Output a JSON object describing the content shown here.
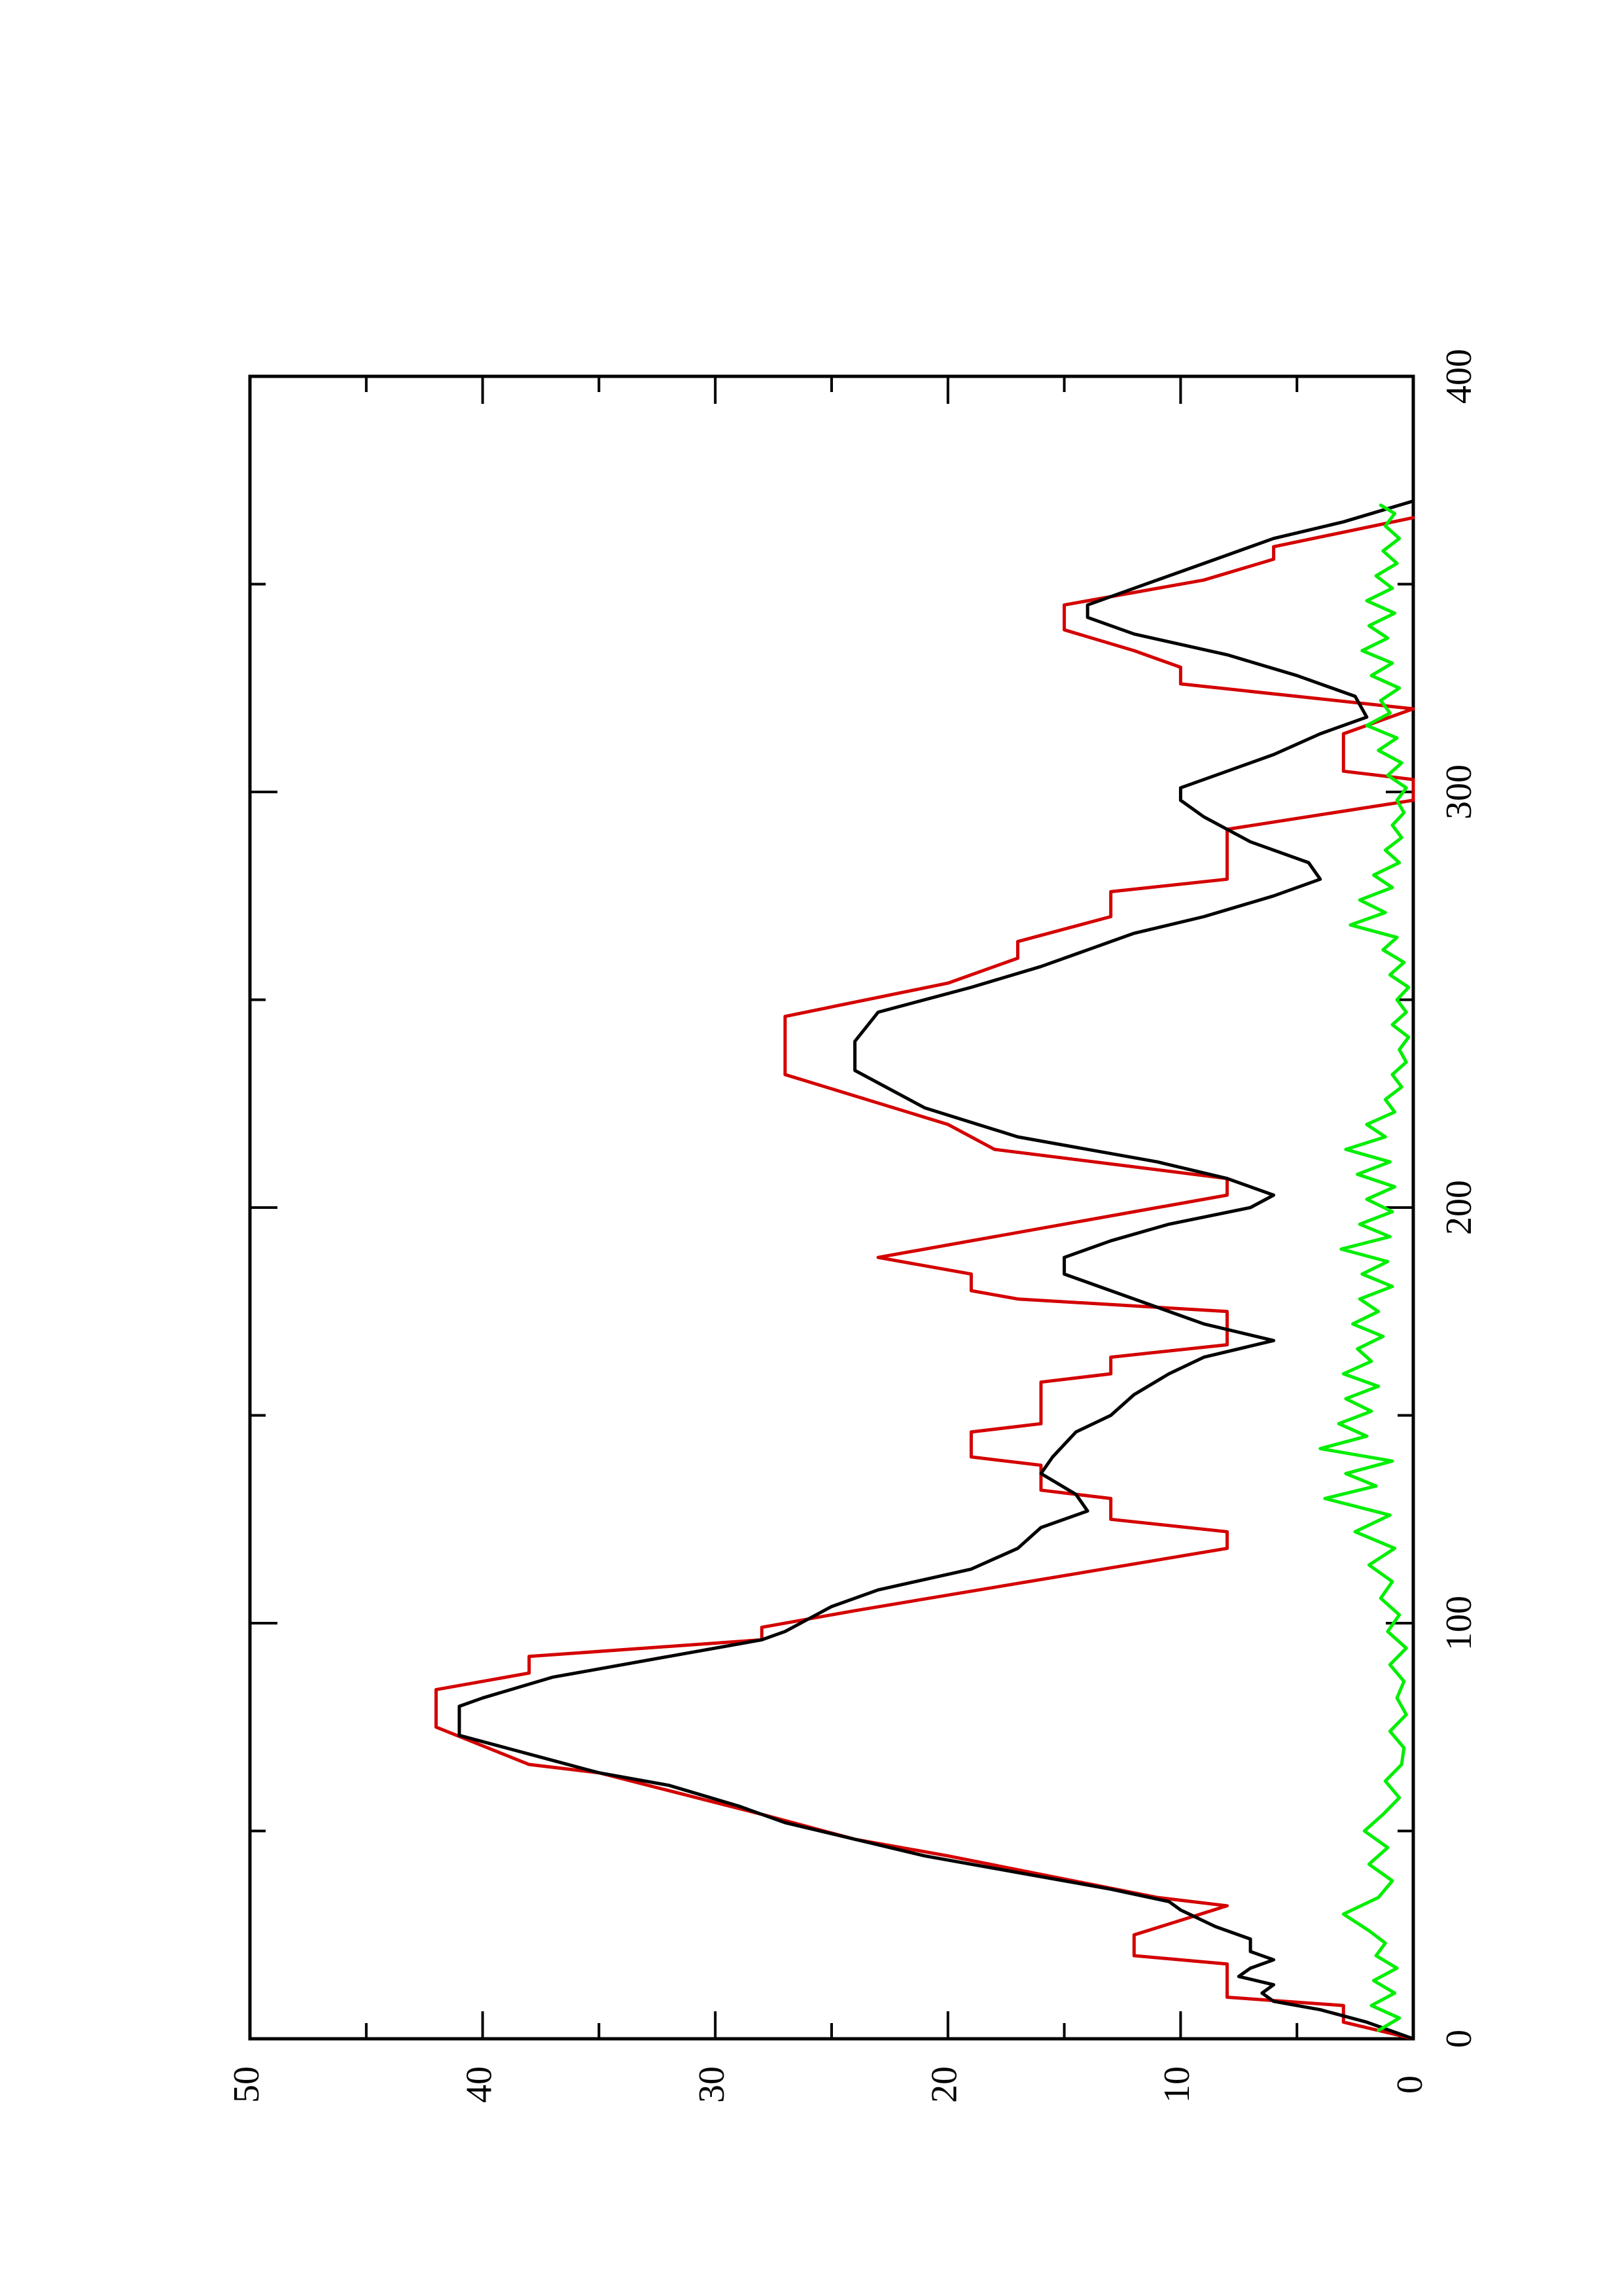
{
  "chart_data": {
    "type": "line",
    "orientation": "rotated-90-ccw",
    "title": "",
    "xlabel": "",
    "ylabel": "",
    "xlim": [
      0,
      400
    ],
    "ylim": [
      0,
      50
    ],
    "x_ticks": [
      "0",
      "100",
      "200",
      "300",
      "400"
    ],
    "y_ticks": [
      "0",
      "10",
      "20",
      "30",
      "40",
      "50"
    ],
    "grid": false,
    "legend": "none",
    "series": [
      {
        "color": "#d40000",
        "style": "step",
        "points": [
          [
            0,
            0
          ],
          [
            4,
            3
          ],
          [
            8,
            3
          ],
          [
            10,
            8
          ],
          [
            18,
            8
          ],
          [
            20,
            12
          ],
          [
            25,
            12
          ],
          [
            32,
            8
          ],
          [
            34,
            11
          ],
          [
            44,
            20
          ],
          [
            48,
            24
          ],
          [
            54,
            28
          ],
          [
            64,
            35
          ],
          [
            66,
            38
          ],
          [
            75,
            42
          ],
          [
            84,
            42
          ],
          [
            88,
            38
          ],
          [
            92,
            38
          ],
          [
            96,
            28
          ],
          [
            99,
            28
          ],
          [
            103,
            24
          ],
          [
            118,
            8
          ],
          [
            122,
            8
          ],
          [
            125,
            13
          ],
          [
            130,
            13
          ],
          [
            132,
            16
          ],
          [
            138,
            16
          ],
          [
            140,
            19
          ],
          [
            144,
            19
          ],
          [
            146,
            19
          ],
          [
            148,
            16
          ],
          [
            158,
            16
          ],
          [
            160,
            13
          ],
          [
            164,
            13
          ],
          [
            167,
            8
          ],
          [
            175,
            8
          ],
          [
            178,
            17
          ],
          [
            180,
            19
          ],
          [
            184,
            19
          ],
          [
            188,
            23
          ],
          [
            203,
            8
          ],
          [
            207,
            8
          ],
          [
            214,
            18
          ],
          [
            220,
            20
          ],
          [
            232,
            27
          ],
          [
            246,
            27
          ],
          [
            254,
            20
          ],
          [
            260,
            17
          ],
          [
            264,
            17
          ],
          [
            270,
            13
          ],
          [
            276,
            13
          ],
          [
            279,
            8
          ],
          [
            291,
            8
          ],
          [
            298,
            0
          ],
          [
            303,
            0
          ],
          [
            305,
            3
          ],
          [
            314,
            3
          ],
          [
            320,
            0
          ],
          [
            326,
            10
          ],
          [
            330,
            10
          ],
          [
            334,
            12
          ],
          [
            339,
            15
          ],
          [
            345,
            15
          ],
          [
            351,
            9
          ],
          [
            356,
            6
          ],
          [
            359,
            6
          ],
          [
            366,
            0
          ]
        ]
      },
      {
        "color": "#000000",
        "style": "line",
        "points": [
          [
            0,
            0
          ],
          [
            4,
            2
          ],
          [
            7,
            4
          ],
          [
            9,
            6
          ],
          [
            11,
            6.5
          ],
          [
            13,
            6
          ],
          [
            15,
            7.5
          ],
          [
            17,
            7
          ],
          [
            19,
            6
          ],
          [
            21,
            7
          ],
          [
            24,
            7
          ],
          [
            27,
            8.5
          ],
          [
            31,
            10
          ],
          [
            33,
            10.5
          ],
          [
            36,
            13
          ],
          [
            40,
            17
          ],
          [
            44,
            21
          ],
          [
            48,
            24
          ],
          [
            52,
            27
          ],
          [
            56,
            29
          ],
          [
            61,
            32
          ],
          [
            64,
            35
          ],
          [
            67,
            37
          ],
          [
            70,
            39
          ],
          [
            73,
            41
          ],
          [
            80,
            41
          ],
          [
            82,
            40
          ],
          [
            87,
            37
          ],
          [
            92,
            32
          ],
          [
            96,
            28
          ],
          [
            98,
            27
          ],
          [
            101,
            26
          ],
          [
            104,
            25
          ],
          [
            108,
            23
          ],
          [
            113,
            19
          ],
          [
            118,
            17
          ],
          [
            123,
            16
          ],
          [
            127,
            14
          ],
          [
            131,
            14.5
          ],
          [
            136,
            16
          ],
          [
            140,
            15.5
          ],
          [
            146,
            14.5
          ],
          [
            150,
            13
          ],
          [
            155,
            12
          ],
          [
            160,
            10.5
          ],
          [
            164,
            9
          ],
          [
            168,
            6
          ],
          [
            172,
            9
          ],
          [
            176,
            11
          ],
          [
            180,
            13
          ],
          [
            184,
            15
          ],
          [
            188,
            15
          ],
          [
            192,
            13
          ],
          [
            196,
            10.5
          ],
          [
            200,
            7
          ],
          [
            203,
            6
          ],
          [
            207,
            8
          ],
          [
            211,
            11
          ],
          [
            217,
            17
          ],
          [
            224,
            21
          ],
          [
            230,
            23
          ],
          [
            233,
            24
          ],
          [
            240,
            24
          ],
          [
            247,
            23
          ],
          [
            253,
            19
          ],
          [
            258,
            16
          ],
          [
            262,
            14
          ],
          [
            266,
            12
          ],
          [
            270,
            9
          ],
          [
            275,
            6
          ],
          [
            279,
            4
          ],
          [
            283,
            4.5
          ],
          [
            288,
            7
          ],
          [
            294,
            9
          ],
          [
            298,
            10
          ],
          [
            301,
            10
          ],
          [
            305,
            8
          ],
          [
            309,
            6
          ],
          [
            314,
            4
          ],
          [
            318,
            2
          ],
          [
            323,
            2.5
          ],
          [
            328,
            5
          ],
          [
            333,
            8
          ],
          [
            338,
            12
          ],
          [
            342,
            14
          ],
          [
            345,
            14
          ],
          [
            349,
            12
          ],
          [
            353,
            10
          ],
          [
            357,
            8
          ],
          [
            361,
            6
          ],
          [
            365,
            3
          ],
          [
            370,
            0
          ]
        ]
      },
      {
        "color": "#00ee00",
        "style": "line",
        "points": [
          [
            2,
            1.5
          ],
          [
            5,
            0.6
          ],
          [
            8,
            1.8
          ],
          [
            11,
            0.8
          ],
          [
            14,
            1.7
          ],
          [
            17,
            0.7
          ],
          [
            20,
            1.6
          ],
          [
            23,
            1.2
          ],
          [
            26,
            1.9
          ],
          [
            30,
            3.0
          ],
          [
            34,
            1.5
          ],
          [
            38,
            0.9
          ],
          [
            42,
            1.9
          ],
          [
            46,
            1.1
          ],
          [
            50,
            2.1
          ],
          [
            54,
            1.3
          ],
          [
            58,
            0.6
          ],
          [
            62,
            1.2
          ],
          [
            66,
            0.5
          ],
          [
            70,
            0.4
          ],
          [
            74,
            1.0
          ],
          [
            78,
            0.3
          ],
          [
            82,
            0.7
          ],
          [
            86,
            0.4
          ],
          [
            90,
            1.0
          ],
          [
            94,
            0.3
          ],
          [
            98,
            1.1
          ],
          [
            102,
            0.6
          ],
          [
            106,
            1.4
          ],
          [
            110,
            0.9
          ],
          [
            114,
            1.9
          ],
          [
            118,
            0.8
          ],
          [
            122,
            2.5
          ],
          [
            126,
            1.0
          ],
          [
            130,
            3.8
          ],
          [
            133,
            1.6
          ],
          [
            136,
            2.9
          ],
          [
            139,
            0.9
          ],
          [
            142,
            4.0
          ],
          [
            145,
            2.0
          ],
          [
            148,
            3.2
          ],
          [
            151,
            1.8
          ],
          [
            154,
            2.9
          ],
          [
            157,
            1.5
          ],
          [
            160,
            3.0
          ],
          [
            163,
            1.8
          ],
          [
            166,
            2.4
          ],
          [
            169,
            1.3
          ],
          [
            172,
            2.6
          ],
          [
            175,
            1.5
          ],
          [
            178,
            2.3
          ],
          [
            181,
            0.9
          ],
          [
            184,
            2.2
          ],
          [
            187,
            1.1
          ],
          [
            190,
            3.1
          ],
          [
            193,
            1.0
          ],
          [
            196,
            2.3
          ],
          [
            199,
            0.9
          ],
          [
            202,
            2.0
          ],
          [
            205,
            0.8
          ],
          [
            208,
            2.4
          ],
          [
            211,
            1.0
          ],
          [
            214,
            2.9
          ],
          [
            217,
            1.2
          ],
          [
            220,
            2.0
          ],
          [
            223,
            0.8
          ],
          [
            226,
            1.2
          ],
          [
            229,
            0.5
          ],
          [
            232,
            0.9
          ],
          [
            235,
            0.3
          ],
          [
            238,
            0.6
          ],
          [
            241,
            0.2
          ],
          [
            244,
            0.9
          ],
          [
            247,
            0.3
          ],
          [
            250,
            0.7
          ],
          [
            253,
            0.2
          ],
          [
            256,
            1.0
          ],
          [
            259,
            0.4
          ],
          [
            262,
            1.3
          ],
          [
            265,
            0.7
          ],
          [
            268,
            2.7
          ],
          [
            271,
            1.2
          ],
          [
            274,
            2.3
          ],
          [
            277,
            0.9
          ],
          [
            280,
            1.7
          ],
          [
            283,
            0.6
          ],
          [
            286,
            1.2
          ],
          [
            289,
            0.5
          ],
          [
            292,
            0.9
          ],
          [
            295,
            0.4
          ],
          [
            298,
            0.7
          ],
          [
            301,
            0.3
          ],
          [
            304,
            1.1
          ],
          [
            307,
            0.5
          ],
          [
            310,
            1.5
          ],
          [
            313,
            0.7
          ],
          [
            316,
            2.0
          ],
          [
            319,
            1.0
          ],
          [
            322,
            1.4
          ],
          [
            325,
            0.6
          ],
          [
            328,
            1.8
          ],
          [
            331,
            0.9
          ],
          [
            334,
            2.2
          ],
          [
            337,
            1.1
          ],
          [
            340,
            1.9
          ],
          [
            343,
            0.8
          ],
          [
            346,
            2.0
          ],
          [
            349,
            0.9
          ],
          [
            352,
            1.6
          ],
          [
            355,
            0.7
          ],
          [
            358,
            1.3
          ],
          [
            361,
            0.6
          ],
          [
            364,
            1.2
          ],
          [
            367,
            0.8
          ],
          [
            369,
            1.4
          ]
        ]
      }
    ]
  }
}
